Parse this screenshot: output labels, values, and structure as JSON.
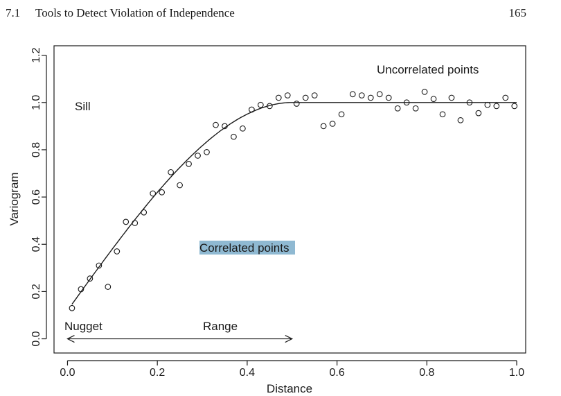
{
  "page": {
    "section_number": "7.1",
    "section_title": "Tools to Detect Violation of Independence",
    "page_number": "165"
  },
  "chart_data": {
    "type": "scatter",
    "xlabel": "Distance",
    "ylabel": "Variogram",
    "xlim": [
      -0.03,
      1.02
    ],
    "ylim": [
      -0.06,
      1.24
    ],
    "x_ticks": [
      0.0,
      0.2,
      0.4,
      0.6,
      0.8,
      1.0
    ],
    "x_tick_labels": [
      "0.0",
      "0.2",
      "0.4",
      "0.6",
      "0.8",
      "1.0"
    ],
    "y_ticks": [
      0.0,
      0.2,
      0.4,
      0.6,
      0.8,
      1.0,
      1.2
    ],
    "y_tick_labels": [
      "0.0",
      "0.2",
      "0.4",
      "0.6",
      "0.8",
      "1.0",
      "1.2"
    ],
    "grid": false,
    "colors": {
      "points": "#1a1a1a",
      "curve": "#1a1a1a",
      "highlight": "#8fb9d2"
    },
    "points": {
      "x": [
        0.01,
        0.03,
        0.05,
        0.07,
        0.09,
        0.11,
        0.13,
        0.15,
        0.17,
        0.19,
        0.21,
        0.23,
        0.25,
        0.27,
        0.29,
        0.31,
        0.33,
        0.35,
        0.37,
        0.39,
        0.41,
        0.43,
        0.45,
        0.47,
        0.49,
        0.51,
        0.53,
        0.55,
        0.57,
        0.59,
        0.61,
        0.635,
        0.655,
        0.675,
        0.695,
        0.715,
        0.735,
        0.755,
        0.775,
        0.795,
        0.815,
        0.835,
        0.855,
        0.875,
        0.895,
        0.915,
        0.935,
        0.955,
        0.975,
        0.995
      ],
      "y": [
        0.13,
        0.21,
        0.255,
        0.31,
        0.22,
        0.37,
        0.495,
        0.49,
        0.535,
        0.615,
        0.62,
        0.705,
        0.65,
        0.74,
        0.775,
        0.79,
        0.905,
        0.9,
        0.855,
        0.89,
        0.97,
        0.99,
        0.985,
        1.02,
        1.03,
        0.995,
        1.02,
        1.03,
        0.9,
        0.91,
        0.95,
        1.035,
        1.03,
        1.02,
        1.035,
        1.02,
        0.975,
        1.0,
        0.975,
        1.045,
        1.015,
        0.95,
        1.02,
        0.925,
        1.0,
        0.955,
        0.99,
        0.985,
        1.02,
        0.985
      ]
    },
    "fitted_curve": {
      "nugget": 0.12,
      "sill": 1.0,
      "range": 0.5,
      "x_max": 1.0
    },
    "annotations": {
      "sill": "Sill",
      "uncorrelated": "Uncorrelated points",
      "correlated": "Correlated points",
      "nugget": "Nugget",
      "range": "Range"
    },
    "range_arrow": {
      "from": 0.0,
      "to": 0.5,
      "y": 0.0
    }
  }
}
